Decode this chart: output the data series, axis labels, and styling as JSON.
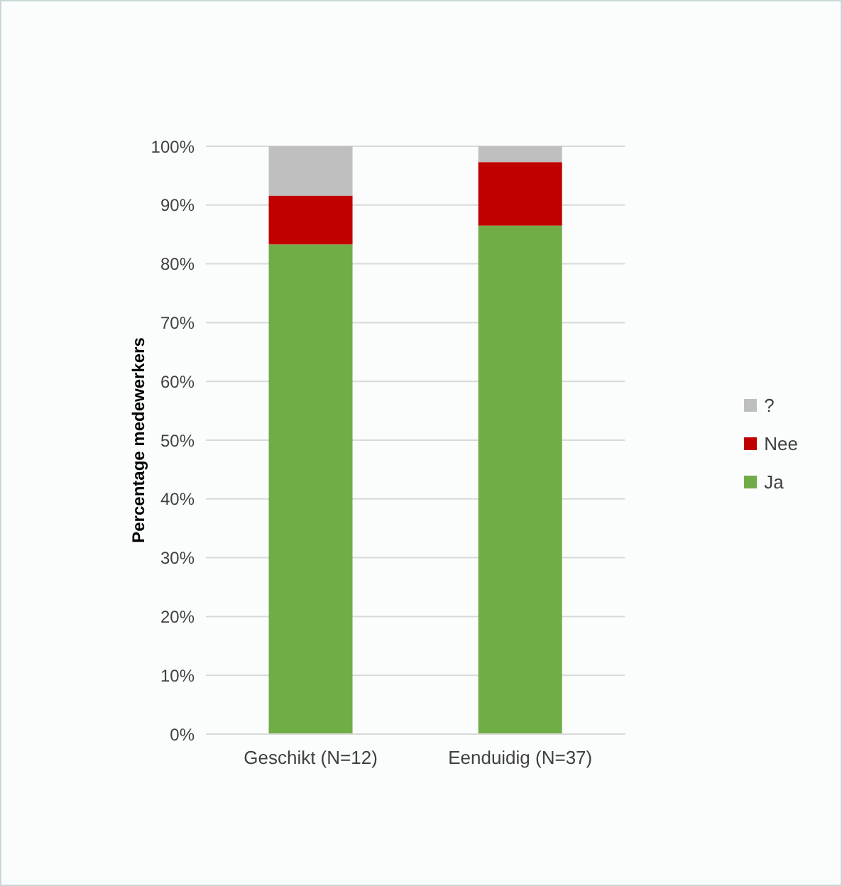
{
  "chart_data": {
    "type": "bar",
    "stacked": true,
    "categories": [
      "Geschikt (N=12)",
      "Eenduidig (N=37)"
    ],
    "series": [
      {
        "name": "Ja",
        "color": "#70ad47",
        "values": [
          83.3,
          86.5
        ]
      },
      {
        "name": "Nee",
        "color": "#c00000",
        "values": [
          8.3,
          10.8
        ]
      },
      {
        "name": "?",
        "color": "#bfbfbf",
        "values": [
          8.4,
          2.7
        ]
      }
    ],
    "ylabel": "Percentage medewerkers",
    "ylim": [
      0,
      100
    ],
    "yticks": [
      {
        "value": 0,
        "label": "0%"
      },
      {
        "value": 10,
        "label": "10%"
      },
      {
        "value": 20,
        "label": "20%"
      },
      {
        "value": 30,
        "label": "30%"
      },
      {
        "value": 40,
        "label": "40%"
      },
      {
        "value": 50,
        "label": "50%"
      },
      {
        "value": 60,
        "label": "60%"
      },
      {
        "value": 70,
        "label": "70%"
      },
      {
        "value": 80,
        "label": "80%"
      },
      {
        "value": 90,
        "label": "90%"
      },
      {
        "value": 100,
        "label": "100%"
      }
    ],
    "grid": "y",
    "legend": "right"
  }
}
